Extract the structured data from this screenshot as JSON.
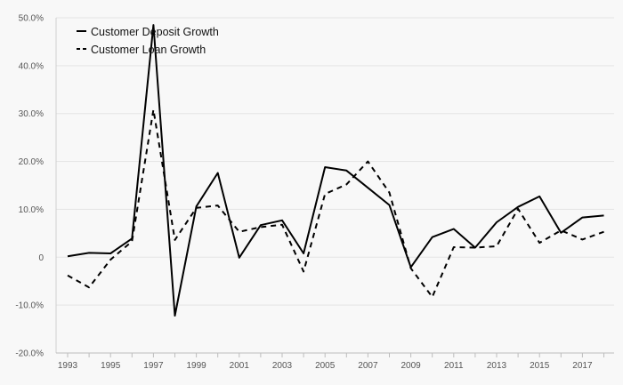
{
  "chart_data": {
    "type": "line",
    "x": [
      1993,
      1994,
      1995,
      1996,
      1997,
      1998,
      1999,
      2000,
      2001,
      2002,
      2003,
      2004,
      2005,
      2006,
      2007,
      2008,
      2009,
      2010,
      2011,
      2012,
      2013,
      2014,
      2015,
      2016,
      2017,
      2018
    ],
    "x_tick_labels": [
      "1993",
      "1995",
      "1997",
      "1999",
      "2001",
      "2003",
      "2005",
      "2007",
      "2009",
      "2011",
      "2013",
      "2015",
      "2017"
    ],
    "series": [
      {
        "name": "Customer Deposit Growth",
        "style": "solid",
        "color": "#000000",
        "values": [
          0.2,
          0.9,
          0.8,
          3.9,
          48.5,
          -12.2,
          10.6,
          17.6,
          -0.1,
          6.7,
          7.7,
          0.8,
          18.8,
          18.1,
          14.5,
          10.9,
          -2.1,
          4.2,
          5.9,
          2.0,
          7.3,
          10.5,
          12.7,
          5.1,
          8.3,
          8.7
        ]
      },
      {
        "name": "Customer Loan Growth",
        "style": "dashed",
        "color": "#000000",
        "values": [
          -3.8,
          -6.3,
          -0.5,
          3.3,
          30.8,
          3.6,
          10.3,
          10.8,
          5.3,
          6.3,
          6.8,
          -3.0,
          13.2,
          15.2,
          20.0,
          13.5,
          -2.3,
          -8.3,
          2.1,
          2.0,
          2.3,
          10.1,
          3.0,
          5.6,
          3.7,
          5.3
        ]
      }
    ],
    "ylim": [
      -20,
      50
    ],
    "y_ticks": [
      -20,
      -10,
      0,
      10,
      20,
      30,
      40,
      50
    ],
    "y_tick_labels": [
      "-20.0%",
      "-10.0%",
      "0",
      "10.0%",
      "20.0%",
      "30.0%",
      "40.0%",
      "50.0%"
    ],
    "title": "",
    "xlabel": "",
    "ylabel": "",
    "grid": true,
    "legend_position": "top-left"
  }
}
